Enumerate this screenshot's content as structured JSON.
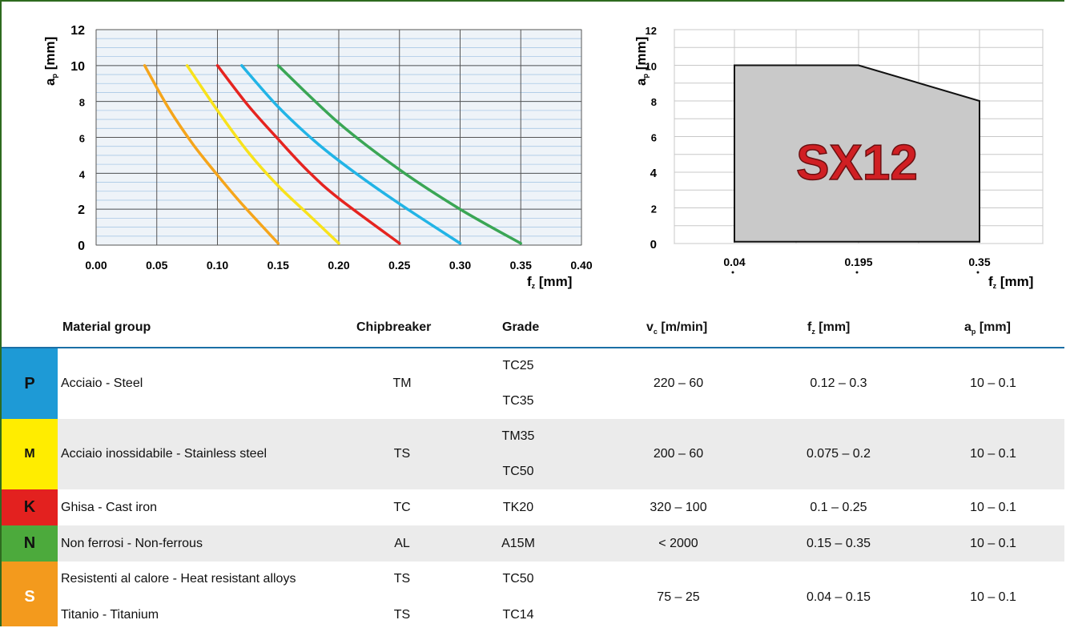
{
  "chart_data": [
    {
      "type": "line",
      "xlabel": "f_z [mm]",
      "ylabel": "a_p [mm]",
      "xlim": [
        0,
        0.4
      ],
      "ylim": [
        0,
        12
      ],
      "xticks": [
        "0.00",
        "0.05",
        "0.10",
        "0.15",
        "0.20",
        "0.25",
        "0.30",
        "0.35",
        "0.40"
      ],
      "yticks": [
        "0",
        "2",
        "4",
        "6",
        "8",
        "10",
        "12"
      ],
      "grid": true,
      "series": [
        {
          "color": "#f5a51b",
          "x": [
            0.04,
            0.06,
            0.08,
            0.1,
            0.12,
            0.15
          ],
          "y": [
            10,
            7.6,
            5.6,
            3.9,
            2.3,
            0.1
          ]
        },
        {
          "color": "#f8e21c",
          "x": [
            0.075,
            0.1,
            0.125,
            0.15,
            0.175,
            0.2
          ],
          "y": [
            10,
            7.5,
            5.2,
            3.3,
            1.7,
            0.1
          ]
        },
        {
          "color": "#e52420",
          "x": [
            0.1,
            0.125,
            0.15,
            0.175,
            0.2,
            0.25
          ],
          "y": [
            10,
            7.8,
            5.9,
            4.1,
            2.6,
            0.1
          ]
        },
        {
          "color": "#22b4e6",
          "x": [
            0.12,
            0.15,
            0.18,
            0.21,
            0.25,
            0.3
          ],
          "y": [
            10,
            7.7,
            5.8,
            4.2,
            2.3,
            0.1
          ]
        },
        {
          "color": "#3aa655",
          "x": [
            0.15,
            0.2,
            0.25,
            0.3,
            0.35
          ],
          "y": [
            10,
            6.8,
            4.2,
            2.0,
            0.1
          ]
        }
      ]
    },
    {
      "type": "area",
      "xlabel": "f_z [mm]",
      "ylabel": "a_p [mm]",
      "label": "SX12",
      "xticks": [
        "0.04",
        "0.195",
        "0.35"
      ],
      "yticks": [
        "0",
        "2",
        "4",
        "6",
        "8",
        "10",
        "12"
      ],
      "ylim": [
        0,
        12
      ],
      "points": [
        [
          0.04,
          0.1
        ],
        [
          0.04,
          10
        ],
        [
          0.195,
          10
        ],
        [
          0.35,
          8
        ],
        [
          0.35,
          0.1
        ]
      ],
      "fill": "#c9c9c9",
      "label_color": "#d01f23"
    }
  ],
  "table": {
    "headers": {
      "material": "Material group",
      "chipbreaker": "Chipbreaker",
      "grade": "Grade",
      "vc": "v_c [m/min]",
      "fz": "f_z [mm]",
      "ap": "a_p [mm]"
    },
    "rows": [
      {
        "letter": "P",
        "color": "#1e9ad6",
        "letter_color": "#111",
        "materials": [
          "Acciaio - Steel"
        ],
        "chipbreakers": [
          "TM"
        ],
        "grades": [
          "TC25",
          "TC35"
        ],
        "vc": "220 – 60",
        "fz": "0.12 – 0.3",
        "ap": "10 – 0.1"
      },
      {
        "letter": "M",
        "color": "#ffed00",
        "letter_color": "#111",
        "materials": [
          "Acciaio inossidabile - Stainless steel"
        ],
        "chipbreakers": [
          "TS"
        ],
        "grades": [
          "TM35",
          "TC50"
        ],
        "vc": "200 – 60",
        "fz": "0.075 – 0.2",
        "ap": "10 – 0.1"
      },
      {
        "letter": "K",
        "color": "#e3211f",
        "letter_color": "#111",
        "materials": [
          "Ghisa - Cast iron"
        ],
        "chipbreakers": [
          "TC"
        ],
        "grades": [
          "TK20"
        ],
        "vc": "320 – 100",
        "fz": "0.1 – 0.25",
        "ap": "10 – 0.1"
      },
      {
        "letter": "N",
        "color": "#4caa3c",
        "letter_color": "#111",
        "materials": [
          "Non ferrosi - Non-ferrous"
        ],
        "chipbreakers": [
          "AL"
        ],
        "grades": [
          "A15M"
        ],
        "vc": "< 2000",
        "fz": "0.15 – 0.35",
        "ap": "10 – 0.1"
      },
      {
        "letter": "S",
        "color": "#f39a1d",
        "letter_color": "#fff",
        "materials": [
          "Resistenti al calore - Heat resistant alloys",
          "Titanio - Titanium"
        ],
        "chipbreakers": [
          "TS",
          "TS"
        ],
        "grades": [
          "TC50",
          "TC14"
        ],
        "vc": "75 – 25",
        "fz": "0.04 – 0.15",
        "ap": "10 – 0.1"
      }
    ]
  }
}
